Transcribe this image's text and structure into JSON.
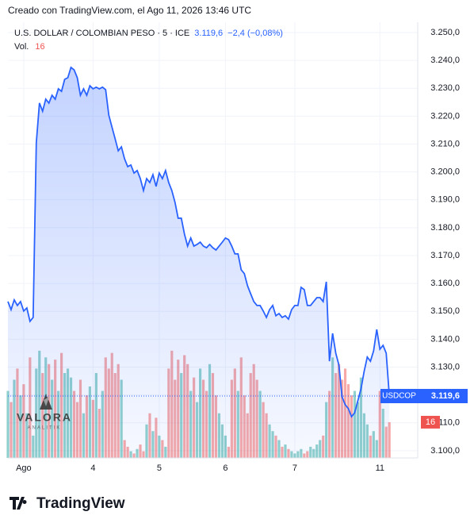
{
  "credit": "Creado con TradingView.com, el Ago 11, 2026 13:46 UTC",
  "chart_data": {
    "type": "area",
    "title": "U.S. DOLLAR / COLOMBIAN PESO · 5 · ICE",
    "last_label": "3.119,6",
    "change_label": "−2,4 (−0,08%)",
    "series": [
      {
        "name": "USDCOP",
        "color": "#2962ff",
        "values": [
          3153.5,
          3150.6,
          3154.1,
          3152.1,
          3153.5,
          3150.1,
          3151.2,
          3146.4,
          3147.8,
          3210.4,
          3224.7,
          3221.8,
          3226.1,
          3224.7,
          3227.5,
          3226.1,
          3229.8,
          3228.9,
          3233.2,
          3233.8,
          3237.5,
          3236.6,
          3233.8,
          3227.5,
          3229.8,
          3227.5,
          3230.9,
          3229.8,
          3230.4,
          3229.8,
          3230.4,
          3229.5,
          3220.4,
          3216.1,
          3211.9,
          3207.6,
          3209.0,
          3204.7,
          3201.9,
          3202.5,
          3199.6,
          3200.5,
          3197.6,
          3193.3,
          3197.6,
          3196.2,
          3199.0,
          3194.8,
          3199.6,
          3197.6,
          3200.5,
          3196.2,
          3193.3,
          3189.1,
          3183.4,
          3183.4,
          3177.7,
          3173.4,
          3176.3,
          3173.4,
          3174.0,
          3174.8,
          3173.4,
          3172.8,
          3174.0,
          3172.8,
          3172.0,
          3173.4,
          3174.8,
          3176.3,
          3175.7,
          3173.4,
          3170.6,
          3170.6,
          3164.9,
          3163.5,
          3159.2,
          3156.3,
          3153.5,
          3152.1,
          3152.1,
          3150.1,
          3147.8,
          3150.6,
          3152.1,
          3148.4,
          3149.2,
          3147.8,
          3148.4,
          3147.2,
          3150.6,
          3152.1,
          3152.1,
          3158.6,
          3157.8,
          3152.1,
          3152.1,
          3153.5,
          3154.9,
          3154.9,
          3153.5,
          3160.6,
          3132.1,
          3142.1,
          3135.0,
          3130.7,
          3119.3,
          3116.5,
          3115.1,
          3112.2,
          3113.6,
          3117.9,
          3122.2,
          3128.4,
          3133.6,
          3132.1,
          3135.8,
          3143.5,
          3136.4,
          3137.8,
          3135.0,
          3119.6
        ]
      }
    ],
    "volume": {
      "name": "Vol.",
      "up_color": "#26a69a",
      "down_color": "#ef5350",
      "ylim": [
        0,
        195
      ],
      "values": [
        30,
        25,
        35,
        40,
        28,
        33,
        20,
        45,
        10,
        40,
        48,
        38,
        45,
        42,
        35,
        44,
        30,
        47,
        38,
        40,
        36,
        30,
        25,
        35,
        20,
        28,
        32,
        26,
        38,
        22,
        30,
        45,
        40,
        47,
        38,
        42,
        35,
        8,
        5,
        3,
        2,
        4,
        6,
        3,
        15,
        20,
        12,
        18,
        10,
        8,
        5,
        40,
        48,
        35,
        44,
        38,
        46,
        42,
        30,
        36,
        25,
        40,
        35,
        30,
        42,
        38,
        28,
        20,
        15,
        10,
        5,
        35,
        40,
        30,
        45,
        28,
        20,
        38,
        42,
        35,
        30,
        25,
        20,
        15,
        12,
        10,
        8,
        5,
        6,
        4,
        3,
        2,
        3,
        4,
        2,
        3,
        5,
        4,
        6,
        8,
        10,
        25,
        30,
        45,
        38,
        42,
        35,
        40,
        33,
        28,
        30,
        25,
        36,
        20,
        15,
        10,
        12,
        8,
        30,
        22,
        14,
        16
      ]
    },
    "xlim": [
      0,
      130
    ],
    "xticks": [
      {
        "value": 5,
        "label": "Ago"
      },
      {
        "value": 27,
        "label": "4"
      },
      {
        "value": 48,
        "label": "5"
      },
      {
        "value": 69,
        "label": "6"
      },
      {
        "value": 91,
        "label": "7"
      },
      {
        "value": 118,
        "label": "11"
      }
    ],
    "ylim": [
      3097.4,
      3253.7
    ],
    "yticks": [
      {
        "value": 3100,
        "label": "3.100,0"
      },
      {
        "value": 3110,
        "label": "3.110,0"
      },
      {
        "value": 3120,
        "label": "3.120,0"
      },
      {
        "value": 3130,
        "label": "3.130,0"
      },
      {
        "value": 3140,
        "label": "3.140,0"
      },
      {
        "value": 3150,
        "label": "3.150,0"
      },
      {
        "value": 3160,
        "label": "3.160,0"
      },
      {
        "value": 3170,
        "label": "3.170,0"
      },
      {
        "value": 3180,
        "label": "3.180,0"
      },
      {
        "value": 3190,
        "label": "3.190,0"
      },
      {
        "value": 3200,
        "label": "3.200,0"
      },
      {
        "value": 3210,
        "label": "3.210,0"
      },
      {
        "value": 3220,
        "label": "3.220,0"
      },
      {
        "value": 3230,
        "label": "3.230,0"
      },
      {
        "value": 3240,
        "label": "3.240,0"
      },
      {
        "value": 3250,
        "label": "3.250,0"
      }
    ],
    "grid": true
  },
  "watermark": {
    "name": "VALORA",
    "tagline": "ANALITIK"
  },
  "footer": {
    "brand": "TradingView"
  }
}
